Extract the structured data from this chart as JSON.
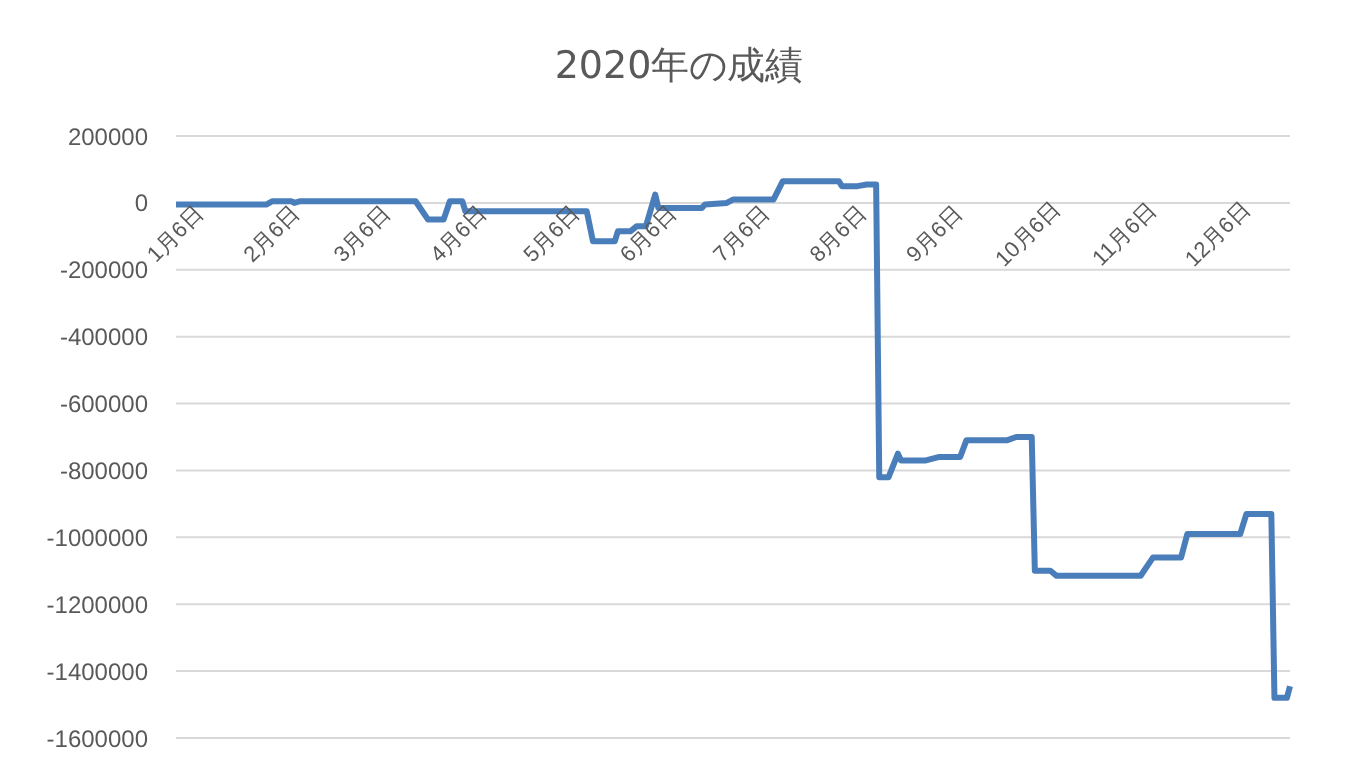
{
  "chart_data": {
    "type": "line",
    "title": "2020年の成績",
    "x": [
      "2020-01-06",
      "2020-02-04",
      "2020-02-06",
      "2020-02-12",
      "2020-02-13",
      "2020-02-15",
      "2020-03-23",
      "2020-03-27",
      "2020-04-01",
      "2020-04-03",
      "2020-04-07",
      "2020-04-08",
      "2020-05-17",
      "2020-05-19",
      "2020-05-26",
      "2020-05-27",
      "2020-05-31",
      "2020-06-02",
      "2020-06-05",
      "2020-06-08",
      "2020-06-09",
      "2020-06-23",
      "2020-06-24",
      "2020-07-01",
      "2020-07-03",
      "2020-07-16",
      "2020-07-19",
      "2020-08-06",
      "2020-08-07",
      "2020-08-12",
      "2020-08-15",
      "2020-08-18",
      "2020-08-19",
      "2020-08-22",
      "2020-08-25",
      "2020-08-26",
      "2020-09-03",
      "2020-09-07",
      "2020-09-14",
      "2020-09-16",
      "2020-09-29",
      "2020-10-02",
      "2020-10-07",
      "2020-10-08",
      "2020-10-13",
      "2020-10-15",
      "2020-11-11",
      "2020-11-15",
      "2020-11-24",
      "2020-11-26",
      "2020-12-13",
      "2020-12-15",
      "2020-12-23",
      "2020-12-24",
      "2020-12-28",
      "2020-12-29"
    ],
    "series": [
      {
        "color": "#4a7ebb",
        "values": [
          -5000,
          -5000,
          5000,
          5000,
          0,
          5000,
          5000,
          -50000,
          -50000,
          5000,
          5000,
          -25000,
          -25000,
          -115000,
          -115000,
          -85000,
          -85000,
          -70000,
          -70000,
          25000,
          -15000,
          -15000,
          -5000,
          0,
          10000,
          10000,
          65000,
          65000,
          50000,
          50000,
          55000,
          55000,
          -820000,
          -820000,
          -750000,
          -770000,
          -770000,
          -760000,
          -760000,
          -710000,
          -710000,
          -700000,
          -700000,
          -1100000,
          -1100000,
          -1115000,
          -1115000,
          -1060000,
          -1060000,
          -990000,
          -990000,
          -930000,
          -930000,
          -1480000,
          -1480000,
          -1445000
        ]
      }
    ],
    "xlim": [
      "2020-01-06",
      "2020-12-29"
    ],
    "xticks": [
      {
        "value": "2020-01-06",
        "label": "1月6日"
      },
      {
        "value": "2020-02-06",
        "label": "2月6日"
      },
      {
        "value": "2020-03-06",
        "label": "3月6日"
      },
      {
        "value": "2020-04-06",
        "label": "4月6日"
      },
      {
        "value": "2020-05-06",
        "label": "5月6日"
      },
      {
        "value": "2020-06-06",
        "label": "6月6日"
      },
      {
        "value": "2020-07-06",
        "label": "7月6日"
      },
      {
        "value": "2020-08-06",
        "label": "8月6日"
      },
      {
        "value": "2020-09-06",
        "label": "9月6日"
      },
      {
        "value": "2020-10-06",
        "label": "10月6日"
      },
      {
        "value": "2020-11-06",
        "label": "11月6日"
      },
      {
        "value": "2020-12-06",
        "label": "12月6日"
      }
    ],
    "ylim": [
      -1600000,
      200000
    ],
    "yticks": [
      -1600000,
      -1400000,
      -1200000,
      -1000000,
      -800000,
      -600000,
      -400000,
      -200000,
      0,
      200000
    ],
    "grid": "y",
    "legend": false,
    "marker": "none",
    "line_style": "solid"
  }
}
